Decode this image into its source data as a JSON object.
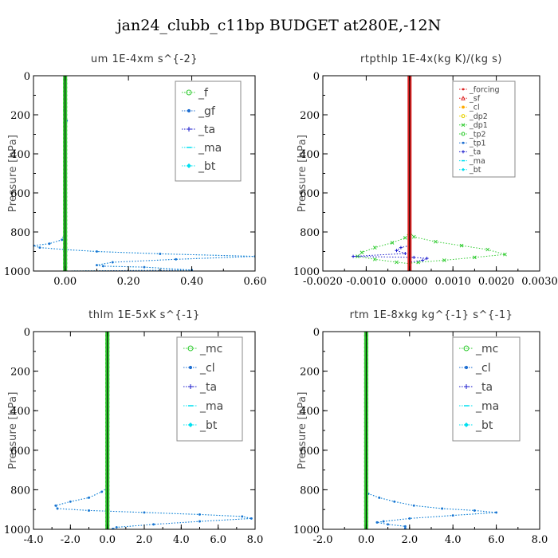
{
  "figure": {
    "title": "jan24_clubb_c11bp  BUDGET at280E,-12N"
  },
  "colors": {
    "blue_dotted": "#1f6fd1",
    "green": "#33cc33",
    "red": "#dd2222",
    "orange": "#ffaa00",
    "navy": "#1a1acc",
    "cyan": "#00e0f0",
    "yellow": "#e6d000",
    "black": "#000000"
  },
  "chart_data": [
    {
      "type": "line",
      "title": "um   1E-4xm  s^{-2}",
      "xlabel": "",
      "ylabel": "Pressure [hPa]",
      "xlim": [
        -0.1,
        0.6
      ],
      "ylim": [
        1000,
        0
      ],
      "x_ticks": [
        "0.00",
        "0.20",
        "0.40",
        "0.60"
      ],
      "x_tick_values": [
        0,
        0.2,
        0.4,
        0.6
      ],
      "y_ticks": [
        "0",
        "200",
        "400",
        "600",
        "800",
        "1000"
      ],
      "y_tick_values": [
        0,
        200,
        400,
        600,
        800,
        1000
      ],
      "legend": {
        "position": "top-right",
        "entries": [
          {
            "label": "_f",
            "color": "#33cc33",
            "marker": "circle"
          },
          {
            "label": "_gf",
            "color": "#1f6fd1",
            "marker": "dot"
          },
          {
            "label": "_ta",
            "color": "#1a1acc",
            "marker": "plus"
          },
          {
            "label": "_ma",
            "color": "#00e0f0",
            "marker": "dash"
          },
          {
            "label": "_bt",
            "color": "#00e0f0",
            "marker": "diamond"
          }
        ]
      },
      "series": [
        {
          "color": "#00e0f0",
          "style": "dotted",
          "marker": "dot",
          "width": 1,
          "points": [
            [
              0,
              0
            ],
            [
              0,
              100
            ],
            [
              -0.003,
              175
            ],
            [
              0.005,
              230
            ],
            [
              0,
              300
            ],
            [
              0,
              500
            ],
            [
              0,
              700
            ],
            [
              0,
              800
            ],
            [
              -0.01,
              840
            ],
            [
              -0.05,
              860
            ],
            [
              -0.1,
              870
            ],
            [
              -0.08,
              880
            ],
            [
              0,
              890
            ],
            [
              0.1,
              900
            ],
            [
              0.3,
              912
            ],
            [
              0.6,
              925
            ],
            [
              0.35,
              940
            ],
            [
              0.15,
              955
            ],
            [
              0.1,
              970
            ],
            [
              0.12,
              975
            ],
            [
              0.25,
              980
            ],
            [
              0.4,
              995
            ],
            [
              0.0,
              1000
            ]
          ]
        },
        {
          "color": "#1f6fd1",
          "style": "dotted",
          "marker": "dot",
          "width": 1,
          "points": [
            [
              0,
              0
            ],
            [
              0,
              100
            ],
            [
              -0.003,
              175
            ],
            [
              0.005,
              230
            ],
            [
              0,
              300
            ],
            [
              0,
              500
            ],
            [
              0,
              700
            ],
            [
              0,
              800
            ],
            [
              -0.01,
              840
            ],
            [
              -0.05,
              860
            ],
            [
              -0.1,
              870
            ],
            [
              -0.08,
              880
            ],
            [
              0,
              890
            ],
            [
              0.1,
              900
            ],
            [
              0.3,
              912
            ],
            [
              0.6,
              925
            ],
            [
              0.35,
              940
            ],
            [
              0.15,
              955
            ],
            [
              0.1,
              970
            ],
            [
              0.12,
              975
            ],
            [
              0.25,
              980
            ],
            [
              0.4,
              995
            ],
            [
              0.0,
              1000
            ]
          ]
        },
        {
          "color": "#33cc33",
          "style": "solid",
          "marker": "circle",
          "width": 5,
          "points": [
            [
              0,
              0
            ],
            [
              0,
              1000
            ]
          ]
        },
        {
          "color": "#000000",
          "style": "solid",
          "marker": "none",
          "width": 1,
          "points": [
            [
              0,
              0
            ],
            [
              0,
              1000
            ]
          ]
        }
      ]
    },
    {
      "type": "line",
      "title": "rtpthlp   1E-4x(kg K)/(kg s)",
      "xlabel": "",
      "ylabel": "Pressure [hPa]",
      "xlim": [
        -0.002,
        0.003
      ],
      "ylim": [
        1000,
        0
      ],
      "x_ticks": [
        "-0.0020",
        "-0.0010",
        "0.0000",
        "0.0010",
        "0.0020",
        "0.0030"
      ],
      "x_tick_values": [
        -0.002,
        -0.001,
        0,
        0.001,
        0.002,
        0.003
      ],
      "y_ticks": [
        "0",
        "200",
        "400",
        "600",
        "800",
        "1000"
      ],
      "y_tick_values": [
        0,
        200,
        400,
        600,
        800,
        1000
      ],
      "legend": {
        "position": "top-right",
        "entries": [
          {
            "label": "_forcing",
            "color": "#dd2222",
            "marker": "dot"
          },
          {
            "label": "_sf",
            "color": "#dd2222",
            "marker": "triangle"
          },
          {
            "label": "_cl",
            "color": "#ffaa00",
            "marker": "star"
          },
          {
            "label": "_dp2",
            "color": "#e6d000",
            "marker": "circle"
          },
          {
            "label": "_dp1",
            "color": "#33cc33",
            "marker": "cross"
          },
          {
            "label": "_tp2",
            "color": "#33cc33",
            "marker": "circle"
          },
          {
            "label": "_tp1",
            "color": "#1f6fd1",
            "marker": "dot"
          },
          {
            "label": "_ta",
            "color": "#1a1acc",
            "marker": "plus"
          },
          {
            "label": "_ma",
            "color": "#00e0f0",
            "marker": "dash"
          },
          {
            "label": "_bt",
            "color": "#00e0f0",
            "marker": "diamond"
          }
        ]
      },
      "series": [
        {
          "color": "#33cc33",
          "style": "dotted",
          "marker": "cross",
          "width": 1,
          "points": [
            [
              0,
              0
            ],
            [
              0,
              800
            ],
            [
              0.0001,
              825
            ],
            [
              0.0006,
              850
            ],
            [
              0.0012,
              870
            ],
            [
              0.0018,
              890
            ],
            [
              0.0022,
              915
            ],
            [
              0.0015,
              930
            ],
            [
              0.0008,
              945
            ],
            [
              0.0002,
              955
            ],
            [
              0,
              960
            ],
            [
              0,
              1000
            ]
          ]
        },
        {
          "color": "#33cc33",
          "style": "dotted",
          "marker": "cross",
          "width": 1,
          "points": [
            [
              0,
              0
            ],
            [
              0,
              800
            ],
            [
              -0.0001,
              830
            ],
            [
              -0.0004,
              855
            ],
            [
              -0.0008,
              880
            ],
            [
              -0.0011,
              905
            ],
            [
              -0.0012,
              925
            ],
            [
              -0.0008,
              940
            ],
            [
              -0.0003,
              955
            ],
            [
              0,
              962
            ],
            [
              0,
              1000
            ]
          ]
        },
        {
          "color": "#1a1acc",
          "style": "dotted",
          "marker": "plus",
          "width": 1,
          "points": [
            [
              0,
              870
            ],
            [
              -0.0002,
              880
            ],
            [
              -0.0003,
              895
            ],
            [
              -0.0001,
              910
            ],
            [
              -0.0013,
              925
            ],
            [
              0.0001,
              930
            ],
            [
              0.0004,
              935
            ],
            [
              0.0003,
              945
            ],
            [
              0,
              955
            ]
          ]
        },
        {
          "color": "#dd2222",
          "style": "solid",
          "marker": "none",
          "width": 5,
          "points": [
            [
              0,
              0
            ],
            [
              0,
              1000
            ]
          ]
        },
        {
          "color": "#000000",
          "style": "solid",
          "marker": "none",
          "width": 1,
          "points": [
            [
              0,
              0
            ],
            [
              0,
              1000
            ]
          ]
        }
      ]
    },
    {
      "type": "line",
      "title": "thlm   1E-5xK  s^{-1}",
      "xlabel": "",
      "ylabel": "Pressure [hPa]",
      "xlim": [
        -4.0,
        8.0
      ],
      "ylim": [
        1000,
        0
      ],
      "x_ticks": [
        "-4.0",
        "-2.0",
        "0.0",
        "2.0",
        "4.0",
        "6.0",
        "8.0"
      ],
      "x_tick_values": [
        -4,
        -2,
        0,
        2,
        4,
        6,
        8
      ],
      "y_ticks": [
        "0",
        "200",
        "400",
        "600",
        "800",
        "1000"
      ],
      "y_tick_values": [
        0,
        200,
        400,
        600,
        800,
        1000
      ],
      "legend": {
        "position": "top-right",
        "entries": [
          {
            "label": "_mc",
            "color": "#33cc33",
            "marker": "circle"
          },
          {
            "label": "_cl",
            "color": "#1f6fd1",
            "marker": "dot"
          },
          {
            "label": "_ta",
            "color": "#1a1acc",
            "marker": "plus"
          },
          {
            "label": "_ma",
            "color": "#00e0f0",
            "marker": "dash"
          },
          {
            "label": "_bt",
            "color": "#00e0f0",
            "marker": "diamond"
          }
        ]
      },
      "series": [
        {
          "color": "#00e0f0",
          "style": "dotted",
          "marker": "dot",
          "width": 1,
          "points": [
            [
              0,
              0
            ],
            [
              0,
              700
            ],
            [
              0,
              790
            ],
            [
              -0.3,
              810
            ],
            [
              -1.0,
              840
            ],
            [
              -2.0,
              860
            ],
            [
              -2.8,
              880
            ],
            [
              -2.7,
              895
            ],
            [
              -1.0,
              905
            ],
            [
              2.0,
              915
            ],
            [
              5.0,
              925
            ],
            [
              7.3,
              935
            ],
            [
              7.8,
              945
            ],
            [
              5.0,
              960
            ],
            [
              2.5,
              975
            ],
            [
              0.5,
              990
            ],
            [
              0.3,
              998
            ]
          ]
        },
        {
          "color": "#1f6fd1",
          "style": "dotted",
          "marker": "dot",
          "width": 1,
          "points": [
            [
              0,
              0
            ],
            [
              0,
              700
            ],
            [
              0,
              790
            ],
            [
              -0.3,
              810
            ],
            [
              -1.0,
              840
            ],
            [
              -2.0,
              860
            ],
            [
              -2.8,
              880
            ],
            [
              -2.7,
              895
            ],
            [
              -1.0,
              905
            ],
            [
              2.0,
              915
            ],
            [
              5.0,
              925
            ],
            [
              7.3,
              935
            ],
            [
              7.8,
              945
            ],
            [
              5.0,
              960
            ],
            [
              2.5,
              975
            ],
            [
              0.5,
              990
            ],
            [
              0.3,
              998
            ]
          ]
        },
        {
          "color": "#33cc33",
          "style": "solid",
          "marker": "circle",
          "width": 5,
          "points": [
            [
              0,
              0
            ],
            [
              0,
              1000
            ]
          ]
        },
        {
          "color": "#000000",
          "style": "solid",
          "marker": "none",
          "width": 1,
          "points": [
            [
              0,
              0
            ],
            [
              0,
              1000
            ]
          ]
        }
      ]
    },
    {
      "type": "line",
      "title": "rtm   1E-8xkg  kg^{-1}  s^{-1}",
      "xlabel": "",
      "ylabel": "Pressure [hPa]",
      "xlim": [
        -2.0,
        8.0
      ],
      "ylim": [
        1000,
        0
      ],
      "x_ticks": [
        "-2.0",
        "0.0",
        "2.0",
        "4.0",
        "6.0",
        "8.0"
      ],
      "x_tick_values": [
        -2,
        0,
        2,
        4,
        6,
        8
      ],
      "y_ticks": [
        "0",
        "200",
        "400",
        "600",
        "800",
        "1000"
      ],
      "y_tick_values": [
        0,
        200,
        400,
        600,
        800,
        1000
      ],
      "legend": {
        "position": "top-right",
        "entries": [
          {
            "label": "_mc",
            "color": "#33cc33",
            "marker": "circle"
          },
          {
            "label": "_cl",
            "color": "#1f6fd1",
            "marker": "dot"
          },
          {
            "label": "_ta",
            "color": "#1a1acc",
            "marker": "plus"
          },
          {
            "label": "_ma",
            "color": "#00e0f0",
            "marker": "dash"
          },
          {
            "label": "_bt",
            "color": "#00e0f0",
            "marker": "diamond"
          }
        ]
      },
      "series": [
        {
          "color": "#00e0f0",
          "style": "dotted",
          "marker": "dot",
          "width": 1,
          "points": [
            [
              0,
              0
            ],
            [
              0,
              780
            ],
            [
              0.1,
              820
            ],
            [
              0.6,
              840
            ],
            [
              1.3,
              860
            ],
            [
              2.2,
              880
            ],
            [
              3.5,
              895
            ],
            [
              5.0,
              905
            ],
            [
              6.0,
              915
            ],
            [
              4.0,
              930
            ],
            [
              2.0,
              945
            ],
            [
              0.8,
              960
            ],
            [
              0.5,
              965
            ],
            [
              1.0,
              975
            ],
            [
              1.8,
              985
            ],
            [
              1.8,
              995
            ]
          ]
        },
        {
          "color": "#1f6fd1",
          "style": "dotted",
          "marker": "dot",
          "width": 1,
          "points": [
            [
              0,
              0
            ],
            [
              0,
              780
            ],
            [
              0.1,
              820
            ],
            [
              0.6,
              840
            ],
            [
              1.3,
              860
            ],
            [
              2.2,
              880
            ],
            [
              3.5,
              895
            ],
            [
              5.0,
              905
            ],
            [
              6.0,
              915
            ],
            [
              4.0,
              930
            ],
            [
              2.0,
              945
            ],
            [
              0.8,
              960
            ],
            [
              0.5,
              965
            ],
            [
              1.0,
              975
            ],
            [
              1.8,
              985
            ],
            [
              1.8,
              995
            ]
          ]
        },
        {
          "color": "#33cc33",
          "style": "solid",
          "marker": "circle",
          "width": 5,
          "points": [
            [
              0,
              0
            ],
            [
              0,
              1000
            ]
          ]
        },
        {
          "color": "#000000",
          "style": "solid",
          "marker": "none",
          "width": 1,
          "points": [
            [
              0,
              0
            ],
            [
              0,
              1000
            ]
          ]
        }
      ]
    }
  ]
}
